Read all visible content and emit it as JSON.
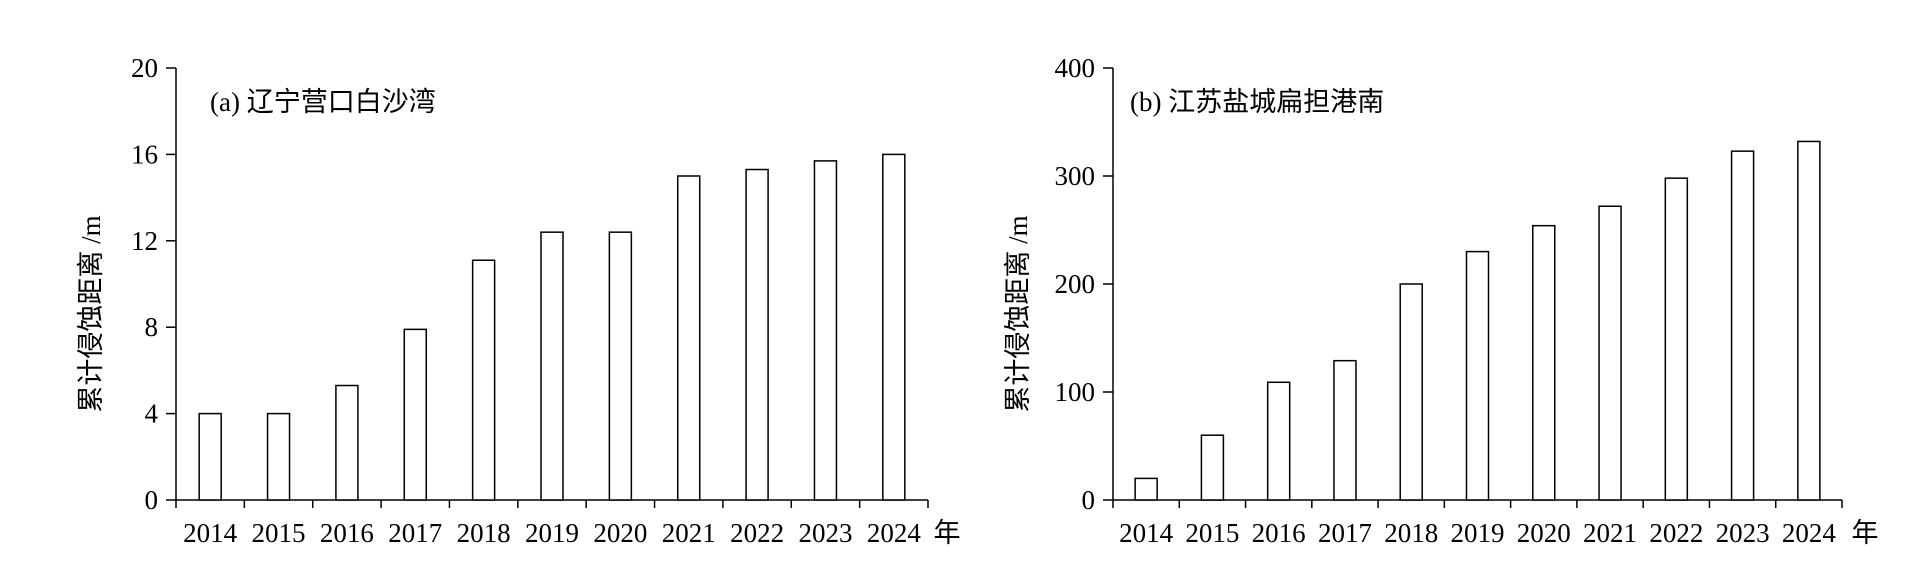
{
  "chart_data": [
    {
      "type": "bar",
      "title": "(a) 辽宁营口白沙湾",
      "ylabel": "累计侵蚀距离 /m",
      "xunit": "年",
      "categories": [
        "2014",
        "2015",
        "2016",
        "2017",
        "2018",
        "2019",
        "2020",
        "2021",
        "2022",
        "2023",
        "2024"
      ],
      "values": [
        4.0,
        4.0,
        5.3,
        7.9,
        11.1,
        12.4,
        12.4,
        15.0,
        15.3,
        15.7,
        16.0
      ],
      "ylim": [
        0,
        20
      ],
      "yticks": [
        0,
        4,
        8,
        12,
        16,
        20
      ],
      "bar_fill": "#ffffff",
      "bar_stroke": "#000000",
      "grid": false
    },
    {
      "type": "bar",
      "title": "(b) 江苏盐城扁担港南",
      "ylabel": "累计侵蚀距离 /m",
      "xunit": "年",
      "categories": [
        "2014",
        "2015",
        "2016",
        "2017",
        "2018",
        "2019",
        "2020",
        "2021",
        "2022",
        "2023",
        "2024"
      ],
      "values": [
        20,
        60,
        109,
        129,
        200,
        230,
        254,
        272,
        298,
        323,
        332
      ],
      "ylim": [
        0,
        400
      ],
      "yticks": [
        0,
        100,
        200,
        300,
        400
      ],
      "bar_fill": "#ffffff",
      "bar_stroke": "#000000",
      "grid": false
    }
  ]
}
